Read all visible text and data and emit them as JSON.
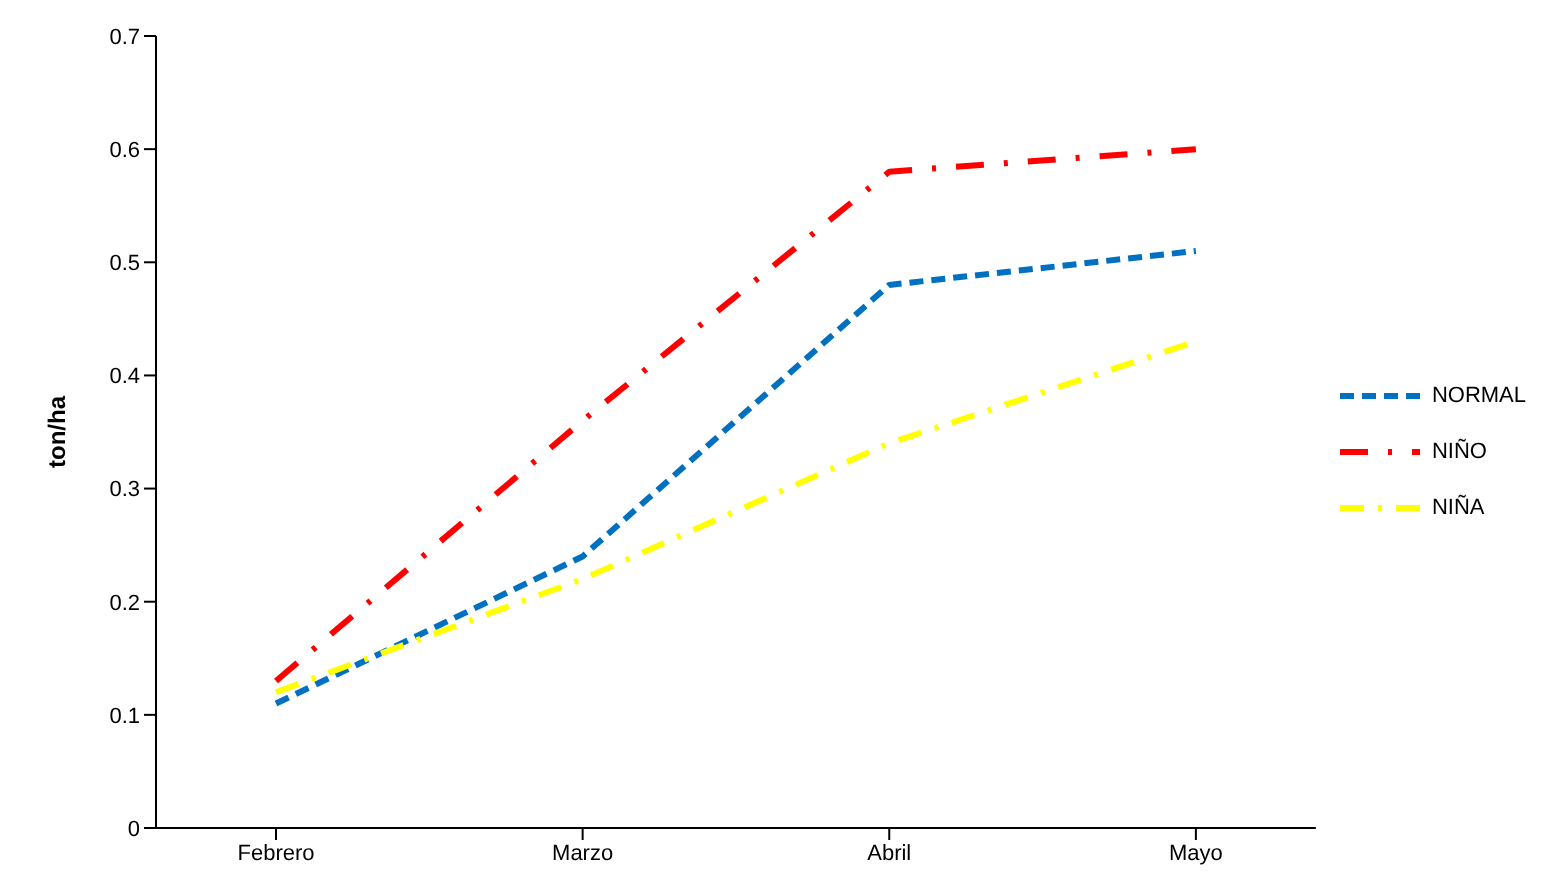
{
  "chart_data": {
    "type": "line",
    "ylabel": "ton/ha",
    "categories": [
      "Febrero",
      "Marzo",
      "Abril",
      "Mayo"
    ],
    "series": [
      {
        "name": "NORMAL",
        "color": "#0070c0",
        "values": [
          0.11,
          0.24,
          0.48,
          0.51
        ],
        "line_style": "dashed"
      },
      {
        "name": "NIÑO",
        "color": "#ff0000",
        "values": [
          0.13,
          0.36,
          0.58,
          0.6
        ],
        "line_style": "dashed"
      },
      {
        "name": "NIÑA",
        "color": "#ffff00",
        "values": [
          0.12,
          0.22,
          0.34,
          0.43
        ],
        "line_style": "dashed"
      }
    ],
    "ylim": [
      0,
      0.7
    ],
    "yticks": [
      0,
      0.1,
      0.2,
      0.3,
      0.4,
      0.5,
      0.6,
      0.7
    ],
    "grid": false,
    "legend": "right",
    "marker": "none"
  }
}
